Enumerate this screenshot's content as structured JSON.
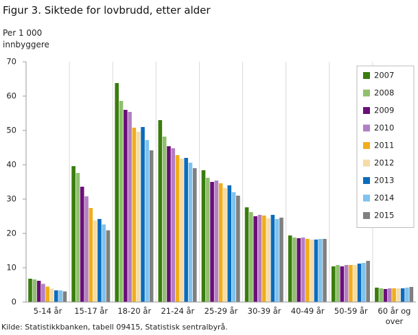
{
  "chart_data": {
    "type": "bar",
    "title": "Figur 3. Siktede for lovbrudd, etter alder",
    "y_label": "Per 1 000 innbyggere",
    "source": "Kilde: Statistikkbanken, tabell 09415, Statistisk sentralbyrå.",
    "categories": [
      "5-14 år",
      "15-17 år",
      "18-20 år",
      "21-24 år",
      "25-29 år",
      "30-39 år",
      "40-49 år",
      "50-59 år",
      "60 år og over"
    ],
    "series": [
      {
        "name": "2007",
        "color": "#3a7d0e",
        "values": [
          6.8,
          39.6,
          63.8,
          53.0,
          38.4,
          27.6,
          19.4,
          10.4,
          4.2
        ]
      },
      {
        "name": "2008",
        "color": "#8fc06d",
        "values": [
          6.6,
          37.6,
          58.6,
          48.2,
          36.2,
          26.2,
          18.8,
          10.8,
          4.0
        ]
      },
      {
        "name": "2009",
        "color": "#6b0e78",
        "values": [
          6.2,
          33.6,
          56.0,
          45.4,
          35.0,
          25.0,
          18.6,
          10.4,
          3.8
        ]
      },
      {
        "name": "2010",
        "color": "#b37fc4",
        "values": [
          5.3,
          30.8,
          55.4,
          44.8,
          35.4,
          25.4,
          18.8,
          10.8,
          4.0
        ]
      },
      {
        "name": "2011",
        "color": "#f0ae1a",
        "values": [
          4.5,
          27.4,
          50.8,
          42.8,
          34.6,
          25.2,
          18.4,
          10.8,
          4.0
        ]
      },
      {
        "name": "2012",
        "color": "#f7dba5",
        "values": [
          3.9,
          23.8,
          49.6,
          41.8,
          33.2,
          24.4,
          18.2,
          10.8,
          4.0
        ]
      },
      {
        "name": "2013",
        "color": "#0b6cbd",
        "values": [
          3.4,
          24.2,
          51.0,
          42.0,
          34.0,
          25.4,
          18.2,
          11.2,
          4.0
        ]
      },
      {
        "name": "2014",
        "color": "#7fc3ee",
        "values": [
          3.4,
          22.6,
          47.2,
          40.6,
          32.0,
          24.2,
          18.4,
          11.4,
          4.2
        ]
      },
      {
        "name": "2015",
        "color": "#808080",
        "values": [
          3.1,
          20.9,
          44.2,
          39.0,
          31.0,
          24.6,
          18.4,
          12.0,
          4.4
        ]
      }
    ],
    "ylim": [
      0,
      70
    ],
    "yticks": [
      0,
      10,
      20,
      30,
      40,
      50,
      60,
      70
    ],
    "grid": false,
    "legend": "top-right"
  }
}
